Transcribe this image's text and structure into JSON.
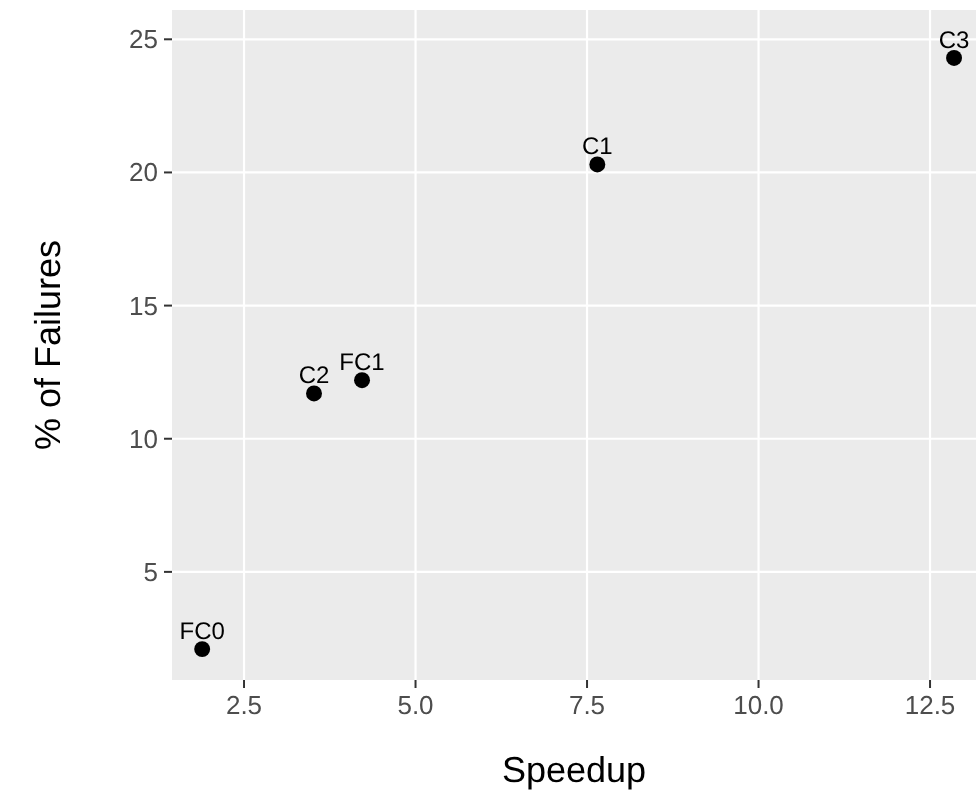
{
  "chart_data": {
    "type": "scatter",
    "xlabel": "Speedup",
    "ylabel": "% of Failures",
    "x": [
      1.89,
      3.52,
      4.22,
      7.65,
      12.85
    ],
    "series": [
      {
        "color": "#000000",
        "values": [
          2.1,
          11.7,
          12.2,
          20.3,
          24.3
        ]
      }
    ],
    "xlim": [
      1.45,
      13.17
    ],
    "ylim": [
      0.94,
      26.1
    ],
    "xticks": [
      {
        "value": 2.5,
        "label": "2.5"
      },
      {
        "value": 5,
        "label": "5.0"
      },
      {
        "value": 7.5,
        "label": "7.5"
      },
      {
        "value": 10,
        "label": "10.0"
      },
      {
        "value": 12.5,
        "label": "12.5"
      }
    ],
    "yticks": [
      5,
      10,
      15,
      20,
      25
    ],
    "grid": true,
    "marker": "circle",
    "annotations": [
      {
        "text": "FC0",
        "x": 1.89,
        "y": 2.1
      },
      {
        "text": "C2",
        "x": 3.52,
        "y": 11.7
      },
      {
        "text": "FC1",
        "x": 4.22,
        "y": 12.2
      },
      {
        "text": "C1",
        "x": 7.65,
        "y": 20.3
      },
      {
        "text": "C3",
        "x": 12.85,
        "y": 24.3
      }
    ]
  }
}
